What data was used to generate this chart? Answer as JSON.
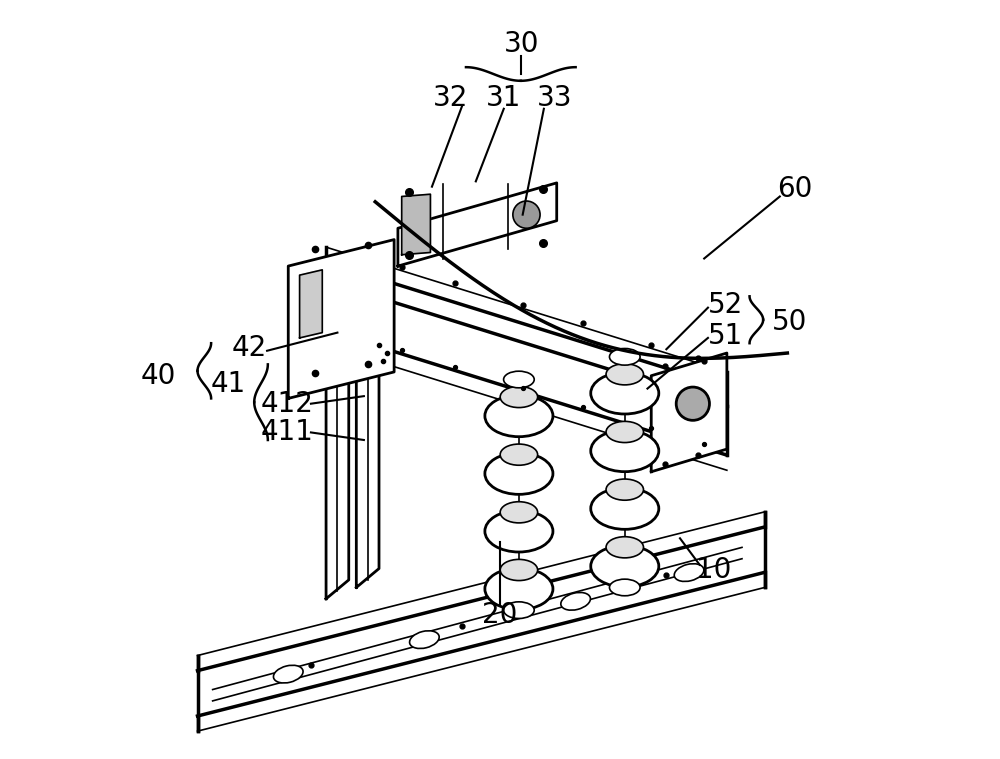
{
  "background_color": "#ffffff",
  "line_color": "#000000",
  "fig_width": 10.0,
  "fig_height": 7.59,
  "dpi": 100,
  "label_fontsize": 20,
  "leader_lw": 1.5,
  "lw_main": 2.0,
  "lw_thin": 1.2,
  "lw_thick": 2.5
}
